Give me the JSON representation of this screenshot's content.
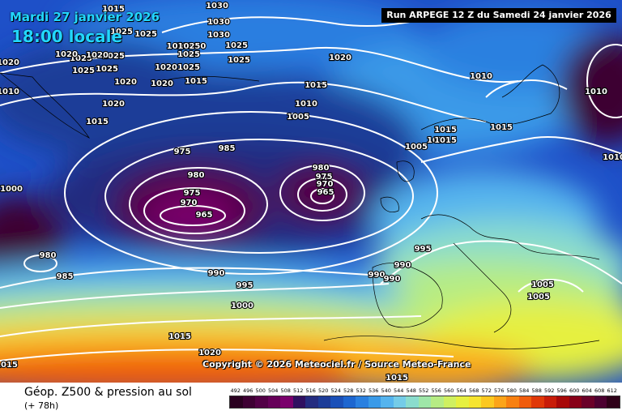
{
  "header": {
    "valid_date": "Mardi 27 janvier 2026",
    "valid_time": "18:00 locale",
    "run_info": "Run ARPEGE 12 Z du Samedi 24 janvier 2026"
  },
  "copyright": "Copyright © 2026 Meteociel.fr / Source Meteo-France",
  "footer": {
    "title": "Géop. Z500 & pression au sol",
    "subtitle": "(+ 78h)"
  },
  "scale": {
    "values": [
      "492",
      "496",
      "500",
      "504",
      "508",
      "512",
      "516",
      "520",
      "524",
      "528",
      "532",
      "536",
      "540",
      "544",
      "548",
      "552",
      "556",
      "560",
      "564",
      "568",
      "572",
      "576",
      "580",
      "584",
      "588",
      "592",
      "596",
      "600",
      "604",
      "608",
      "612"
    ],
    "colors": [
      "#2a0020",
      "#3e0033",
      "#520046",
      "#660059",
      "#7a006c",
      "#301060",
      "#242c80",
      "#1c3c98",
      "#1a50b8",
      "#1d66d0",
      "#2a80e0",
      "#3a9ae8",
      "#55b4ee",
      "#74cce8",
      "#8adccd",
      "#9ee6a8",
      "#b6ec84",
      "#cff060",
      "#e6f040",
      "#f6e430",
      "#fcc820",
      "#fca418",
      "#f88010",
      "#f05c0c",
      "#e03808",
      "#c81c08",
      "#a80808",
      "#880018",
      "#6a0028",
      "#4c0030",
      "#2e0018"
    ]
  },
  "isobars": {
    "labels": [
      {
        "t": "1030"
      },
      {
        "t": "1015"
      },
      {
        "t": "1025"
      },
      {
        "t": "1030"
      },
      {
        "t": "1030"
      },
      {
        "t": "1025"
      },
      {
        "t": "1025"
      },
      {
        "t": "1025"
      },
      {
        "t": "1030"
      },
      {
        "t": "1025"
      },
      {
        "t": "1020"
      },
      {
        "t": "1025"
      },
      {
        "t": "1025"
      },
      {
        "t": "1010250"
      },
      {
        "t": "1025"
      },
      {
        "t": "1020"
      },
      {
        "t": "1020"
      },
      {
        "t": "1025"
      },
      {
        "t": "1020"
      },
      {
        "t": "1020"
      },
      {
        "t": "1015"
      },
      {
        "t": "1020"
      },
      {
        "t": "1015"
      },
      {
        "t": "1010"
      },
      {
        "t": "1010"
      },
      {
        "t": "1020"
      },
      {
        "t": "1015"
      },
      {
        "t": "1010"
      },
      {
        "t": "1005"
      },
      {
        "t": "975"
      },
      {
        "t": "985"
      },
      {
        "t": "980"
      },
      {
        "t": "975"
      },
      {
        "t": "970"
      },
      {
        "t": "965"
      },
      {
        "t": "980"
      },
      {
        "t": "975"
      },
      {
        "t": "970"
      },
      {
        "t": "965"
      },
      {
        "t": "1000"
      },
      {
        "t": "980"
      },
      {
        "t": "985"
      },
      {
        "t": "990"
      },
      {
        "t": "995"
      },
      {
        "t": "1000"
      },
      {
        "t": "1015"
      },
      {
        "t": "1020"
      },
      {
        "t": "1015"
      },
      {
        "t": "990"
      },
      {
        "t": "990"
      },
      {
        "t": "990"
      },
      {
        "t": "995"
      },
      {
        "t": "1010"
      },
      {
        "t": "1015"
      },
      {
        "t": "1015"
      },
      {
        "t": "1005"
      },
      {
        "t": "1015"
      },
      {
        "t": "1010"
      },
      {
        "t": "1005"
      },
      {
        "t": "1005"
      },
      {
        "t": "1015"
      },
      {
        "t": "1015"
      },
      {
        "t": "1020"
      },
      {
        "t": "1010"
      },
      {
        "t": "1020"
      },
      {
        "t": "1015"
      },
      {
        "t": "1025"
      }
    ]
  }
}
